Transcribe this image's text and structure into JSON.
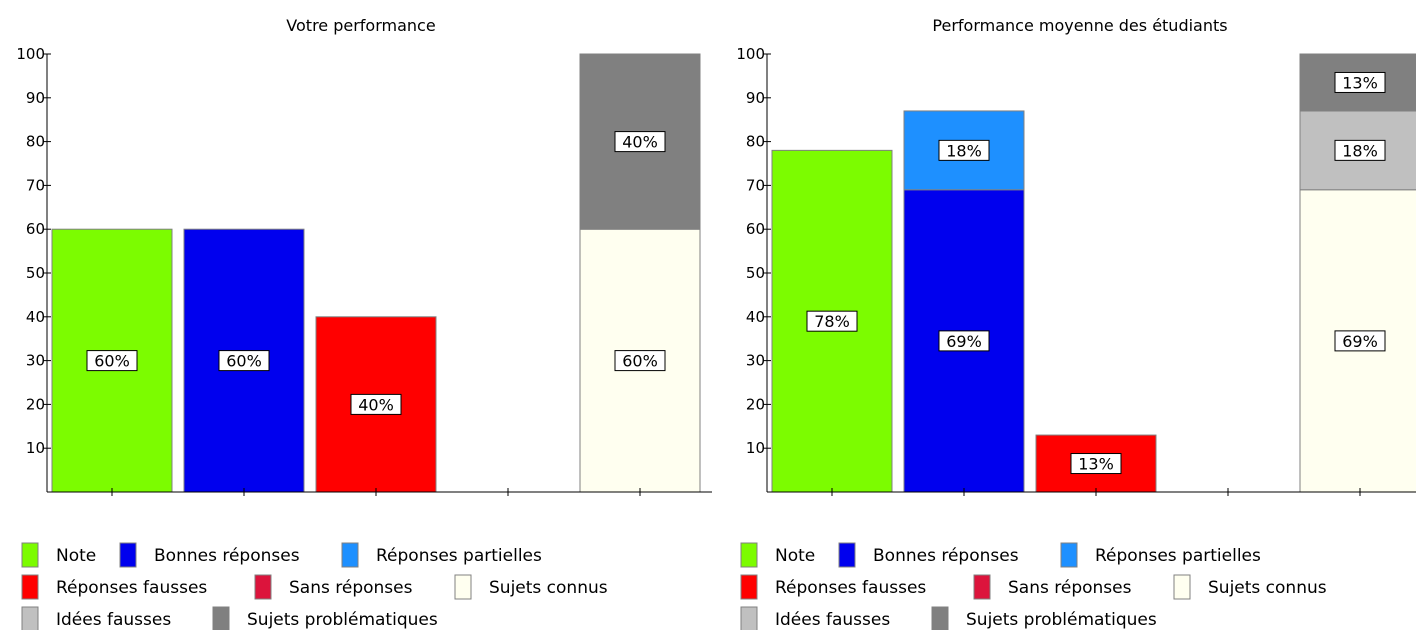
{
  "chart_data": [
    {
      "type": "bar",
      "stacked": true,
      "title": "Votre performance",
      "xlabel": "",
      "ylabel": "",
      "ylim": [
        0,
        100
      ],
      "yticks": [
        10,
        20,
        30,
        40,
        50,
        60,
        70,
        80,
        90,
        100
      ],
      "grid": false,
      "legend_position": "bottom",
      "bars": [
        {
          "segments": [
            {
              "series": "Note",
              "value": 60,
              "label": "60%"
            }
          ]
        },
        {
          "segments": [
            {
              "series": "Bonnes réponses",
              "value": 60,
              "label": "60%"
            }
          ]
        },
        {
          "segments": [
            {
              "series": "Réponses fausses",
              "value": 40,
              "label": "40%"
            }
          ]
        },
        {
          "segments": []
        },
        {
          "segments": [
            {
              "series": "Sujets connus",
              "value": 60,
              "label": "60%"
            },
            {
              "series": "Sujets problématiques",
              "value": 40,
              "label": "40%"
            }
          ]
        }
      ]
    },
    {
      "type": "bar",
      "stacked": true,
      "title": "Performance moyenne des étudiants",
      "xlabel": "",
      "ylabel": "",
      "ylim": [
        0,
        100
      ],
      "yticks": [
        10,
        20,
        30,
        40,
        50,
        60,
        70,
        80,
        90,
        100
      ],
      "grid": false,
      "legend_position": "bottom",
      "bars": [
        {
          "segments": [
            {
              "series": "Note",
              "value": 78,
              "label": "78%"
            }
          ]
        },
        {
          "segments": [
            {
              "series": "Bonnes réponses",
              "value": 69,
              "label": "69%"
            },
            {
              "series": "Réponses partielles",
              "value": 18,
              "label": "18%"
            }
          ]
        },
        {
          "segments": [
            {
              "series": "Réponses fausses",
              "value": 13,
              "label": "13%"
            }
          ]
        },
        {
          "segments": []
        },
        {
          "segments": [
            {
              "series": "Sujets connus",
              "value": 69,
              "label": "69%"
            },
            {
              "series": "Idées fausses",
              "value": 18,
              "label": "18%"
            },
            {
              "series": "Sujets problématiques",
              "value": 13,
              "label": "13%"
            }
          ]
        }
      ]
    }
  ],
  "legend": [
    {
      "name": "Note",
      "color": "#7cfc00"
    },
    {
      "name": "Bonnes réponses",
      "color": "#0000ee"
    },
    {
      "name": "Réponses partielles",
      "color": "#1e90ff"
    },
    {
      "name": "Réponses fausses",
      "color": "#ff0000"
    },
    {
      "name": "Sans réponses",
      "color": "#dc143c"
    },
    {
      "name": "Sujets connus",
      "color": "#fffff0"
    },
    {
      "name": "Idées fausses",
      "color": "#c0c0c0"
    },
    {
      "name": "Sujets problématiques",
      "color": "#808080"
    }
  ]
}
